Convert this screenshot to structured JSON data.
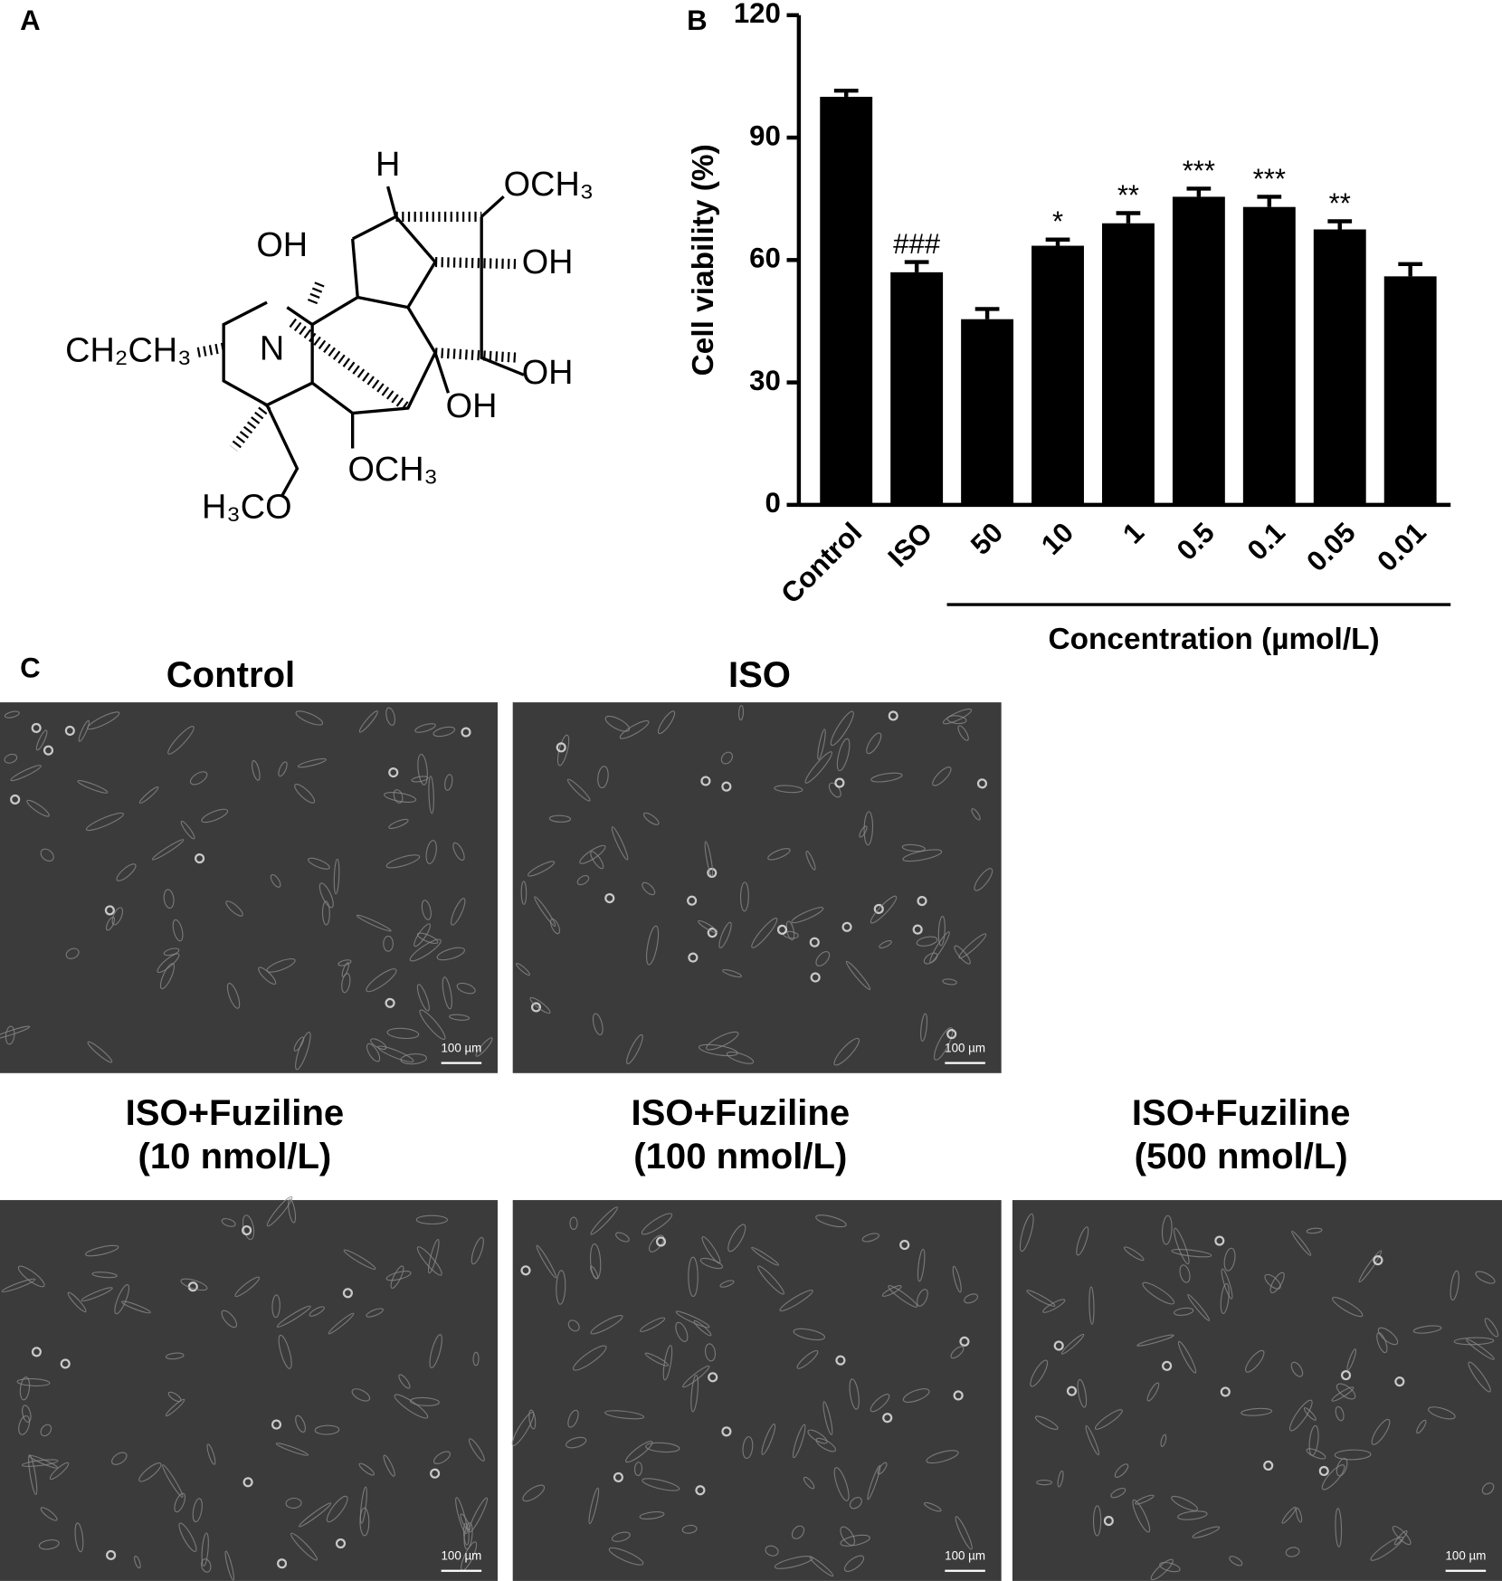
{
  "panel_labels": [
    "A",
    "B",
    "C"
  ],
  "structure": {
    "labels": [
      "H",
      "OCH₃",
      "OH",
      "OH",
      "CH₂CH₃",
      "N",
      "OH",
      "OH",
      "OCH₃",
      "H₃CO"
    ]
  },
  "chart_data": {
    "type": "bar",
    "y_label": "Cell viability (%)",
    "x_label": "Concentration (µmol/L)",
    "categories": [
      "Control",
      "ISO",
      "50",
      "10",
      "1",
      "0.5",
      "0.1",
      "0.05",
      "0.01"
    ],
    "values": [
      100,
      57,
      45.5,
      63.5,
      69,
      75.5,
      73,
      67.5,
      56
    ],
    "errors": [
      1.5,
      2.5,
      2.5,
      1.5,
      2.5,
      2,
      2.5,
      2,
      3
    ],
    "significance": [
      null,
      "###",
      null,
      "*",
      "**",
      "***",
      "***",
      "**",
      null
    ],
    "color": "#000000",
    "ylim": [
      0,
      120
    ],
    "yticks": [
      0,
      30,
      60,
      90,
      120
    ]
  },
  "micrographs": [
    {
      "title": [
        "Control"
      ],
      "scale_bar": "100 µm"
    },
    {
      "title": [
        "ISO"
      ],
      "scale_bar": "100 µm"
    },
    {
      "title": [
        "ISO+Fuziline",
        "(10 nmol/L)"
      ],
      "scale_bar": "100 µm"
    },
    {
      "title": [
        "ISO+Fuziline",
        "(100 nmol/L)"
      ],
      "scale_bar": "100 µm"
    },
    {
      "title": [
        "ISO+Fuziline",
        "(500 nmol/L)"
      ],
      "scale_bar": "100 µm"
    }
  ]
}
